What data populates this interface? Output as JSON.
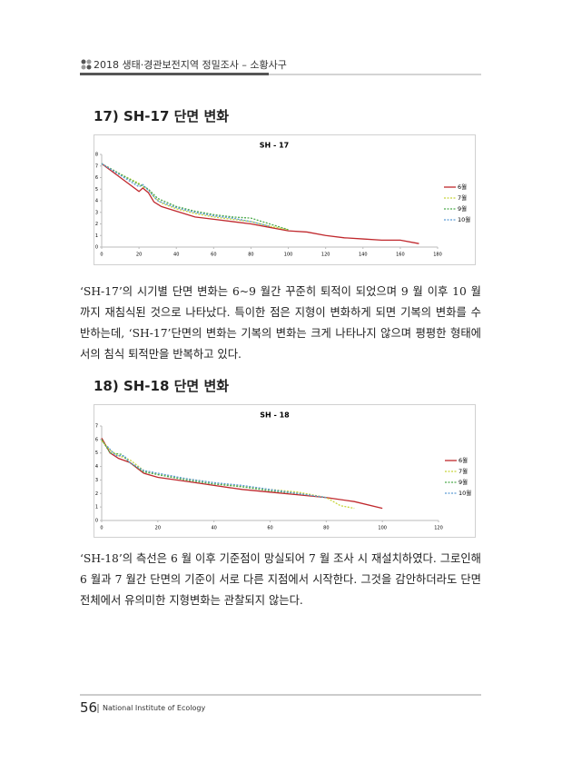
{
  "header": {
    "title": "2018 생태·경관보전지역 정밀조사 – 소황사구"
  },
  "sections": [
    {
      "heading": "17) SH-17 단면 변화",
      "paragraph": "‘SH-17’의 시기별 단면 변화는 6~9 월간 꾸준히 퇴적이 되었으며 9 월 이후 10 월 까지 재침식된 것으로 나타났다. 특이한 점은 지형이 변화하게 되면 기복의 변화를 수반하는데, ‘SH-17’단면의 변화는 기복의 변화는 크게 나타나지 않으며 평평한 형태에서의 침식 퇴적만을 반복하고 있다."
    },
    {
      "heading": "18) SH-18 단면 변화",
      "paragraph": "‘SH-18’의 측선은 6 월 이후 기준점이 망실되어 7 월 조사 시 재설치하였다. 그로인해 6 월과 7 월간 단면의 기준이 서로 다른 지점에서 시작한다. 그것을 감안하더라도 단면 전체에서 유의미한 지형변화는 관찰되지 않는다."
    }
  ],
  "chart_data": [
    {
      "type": "line",
      "title": "SH - 17",
      "xlim": [
        0,
        180
      ],
      "xticks": [
        0,
        20,
        40,
        60,
        80,
        100,
        120,
        140,
        160,
        180
      ],
      "ylim": [
        0,
        8
      ],
      "yticks": [
        0,
        1,
        2,
        3,
        4,
        5,
        6,
        7,
        8
      ],
      "legend": "right",
      "series": [
        {
          "name": "6월",
          "color": "#c0282d",
          "dashed": false,
          "x": [
            0,
            10,
            20,
            22,
            25,
            28,
            32,
            40,
            50,
            60,
            70,
            80,
            90,
            100,
            110,
            120,
            130,
            140,
            150,
            160,
            170
          ],
          "values": [
            7.2,
            6.0,
            4.8,
            5.1,
            4.7,
            3.9,
            3.5,
            3.1,
            2.6,
            2.4,
            2.2,
            2.0,
            1.7,
            1.4,
            1.3,
            1.0,
            0.8,
            0.7,
            0.6,
            0.6,
            0.3
          ]
        },
        {
          "name": "7월",
          "color": "#c8d43a",
          "dashed": true,
          "x": [
            0,
            10,
            20,
            22,
            25,
            28,
            32,
            40,
            50,
            60,
            70,
            80,
            90,
            100
          ],
          "values": [
            7.2,
            6.3,
            5.5,
            5.2,
            5.0,
            4.3,
            3.8,
            3.3,
            2.9,
            2.6,
            2.4,
            2.2,
            1.8,
            1.5
          ]
        },
        {
          "name": "9월",
          "color": "#4caa4c",
          "dashed": true,
          "x": [
            0,
            10,
            20,
            22,
            25,
            30,
            40,
            50,
            60,
            70,
            80,
            90,
            100
          ],
          "values": [
            7.2,
            6.3,
            5.4,
            5.3,
            5.0,
            4.2,
            3.5,
            3.1,
            2.8,
            2.6,
            2.5,
            2.0,
            1.5
          ]
        },
        {
          "name": "10월",
          "color": "#5b9bd5",
          "dashed": true,
          "x": [
            0,
            10,
            20,
            22,
            25,
            30,
            40,
            50,
            60,
            70,
            80,
            90
          ],
          "values": [
            7.2,
            6.2,
            5.2,
            5.4,
            4.9,
            4.0,
            3.4,
            3.0,
            2.7,
            2.5,
            2.2,
            1.8
          ]
        }
      ]
    },
    {
      "type": "line",
      "title": "SH - 18",
      "xlim": [
        0,
        120
      ],
      "xticks": [
        0,
        20,
        40,
        60,
        80,
        100,
        120
      ],
      "ylim": [
        0,
        7
      ],
      "yticks": [
        0,
        1,
        2,
        3,
        4,
        5,
        6,
        7
      ],
      "legend": "right",
      "series": [
        {
          "name": "6월",
          "color": "#c0282d",
          "dashed": false,
          "x": [
            0,
            3,
            6,
            10,
            15,
            20,
            30,
            40,
            50,
            60,
            70,
            80,
            90,
            100
          ],
          "values": [
            6.1,
            5.0,
            4.6,
            4.3,
            3.5,
            3.2,
            2.9,
            2.6,
            2.3,
            2.1,
            1.9,
            1.7,
            1.4,
            0.9
          ]
        },
        {
          "name": "7월",
          "color": "#c8d43a",
          "dashed": true,
          "x": [
            0,
            3,
            6,
            10,
            15,
            20,
            30,
            40,
            50,
            60,
            70,
            80,
            85,
            90
          ],
          "values": [
            5.9,
            5.2,
            4.8,
            4.5,
            3.7,
            3.4,
            3.1,
            2.8,
            2.5,
            2.3,
            2.1,
            1.7,
            1.1,
            0.9
          ]
        },
        {
          "name": "9월",
          "color": "#4caa4c",
          "dashed": true,
          "x": [
            0,
            3,
            7,
            10,
            15,
            20,
            30,
            40,
            50,
            60,
            70,
            80
          ],
          "values": [
            6.0,
            5.0,
            4.9,
            4.3,
            3.6,
            3.4,
            3.0,
            2.7,
            2.5,
            2.2,
            2.0,
            1.7
          ]
        },
        {
          "name": "10월",
          "color": "#5b9bd5",
          "dashed": true,
          "x": [
            2,
            5,
            8,
            10,
            15,
            20,
            30,
            40,
            50,
            60,
            70,
            80
          ],
          "values": [
            5.5,
            4.8,
            4.8,
            4.3,
            3.7,
            3.5,
            3.1,
            2.8,
            2.6,
            2.3,
            2.0,
            1.7
          ]
        }
      ]
    }
  ],
  "footer": {
    "page": "56",
    "text": "National Institute of Ecology"
  }
}
